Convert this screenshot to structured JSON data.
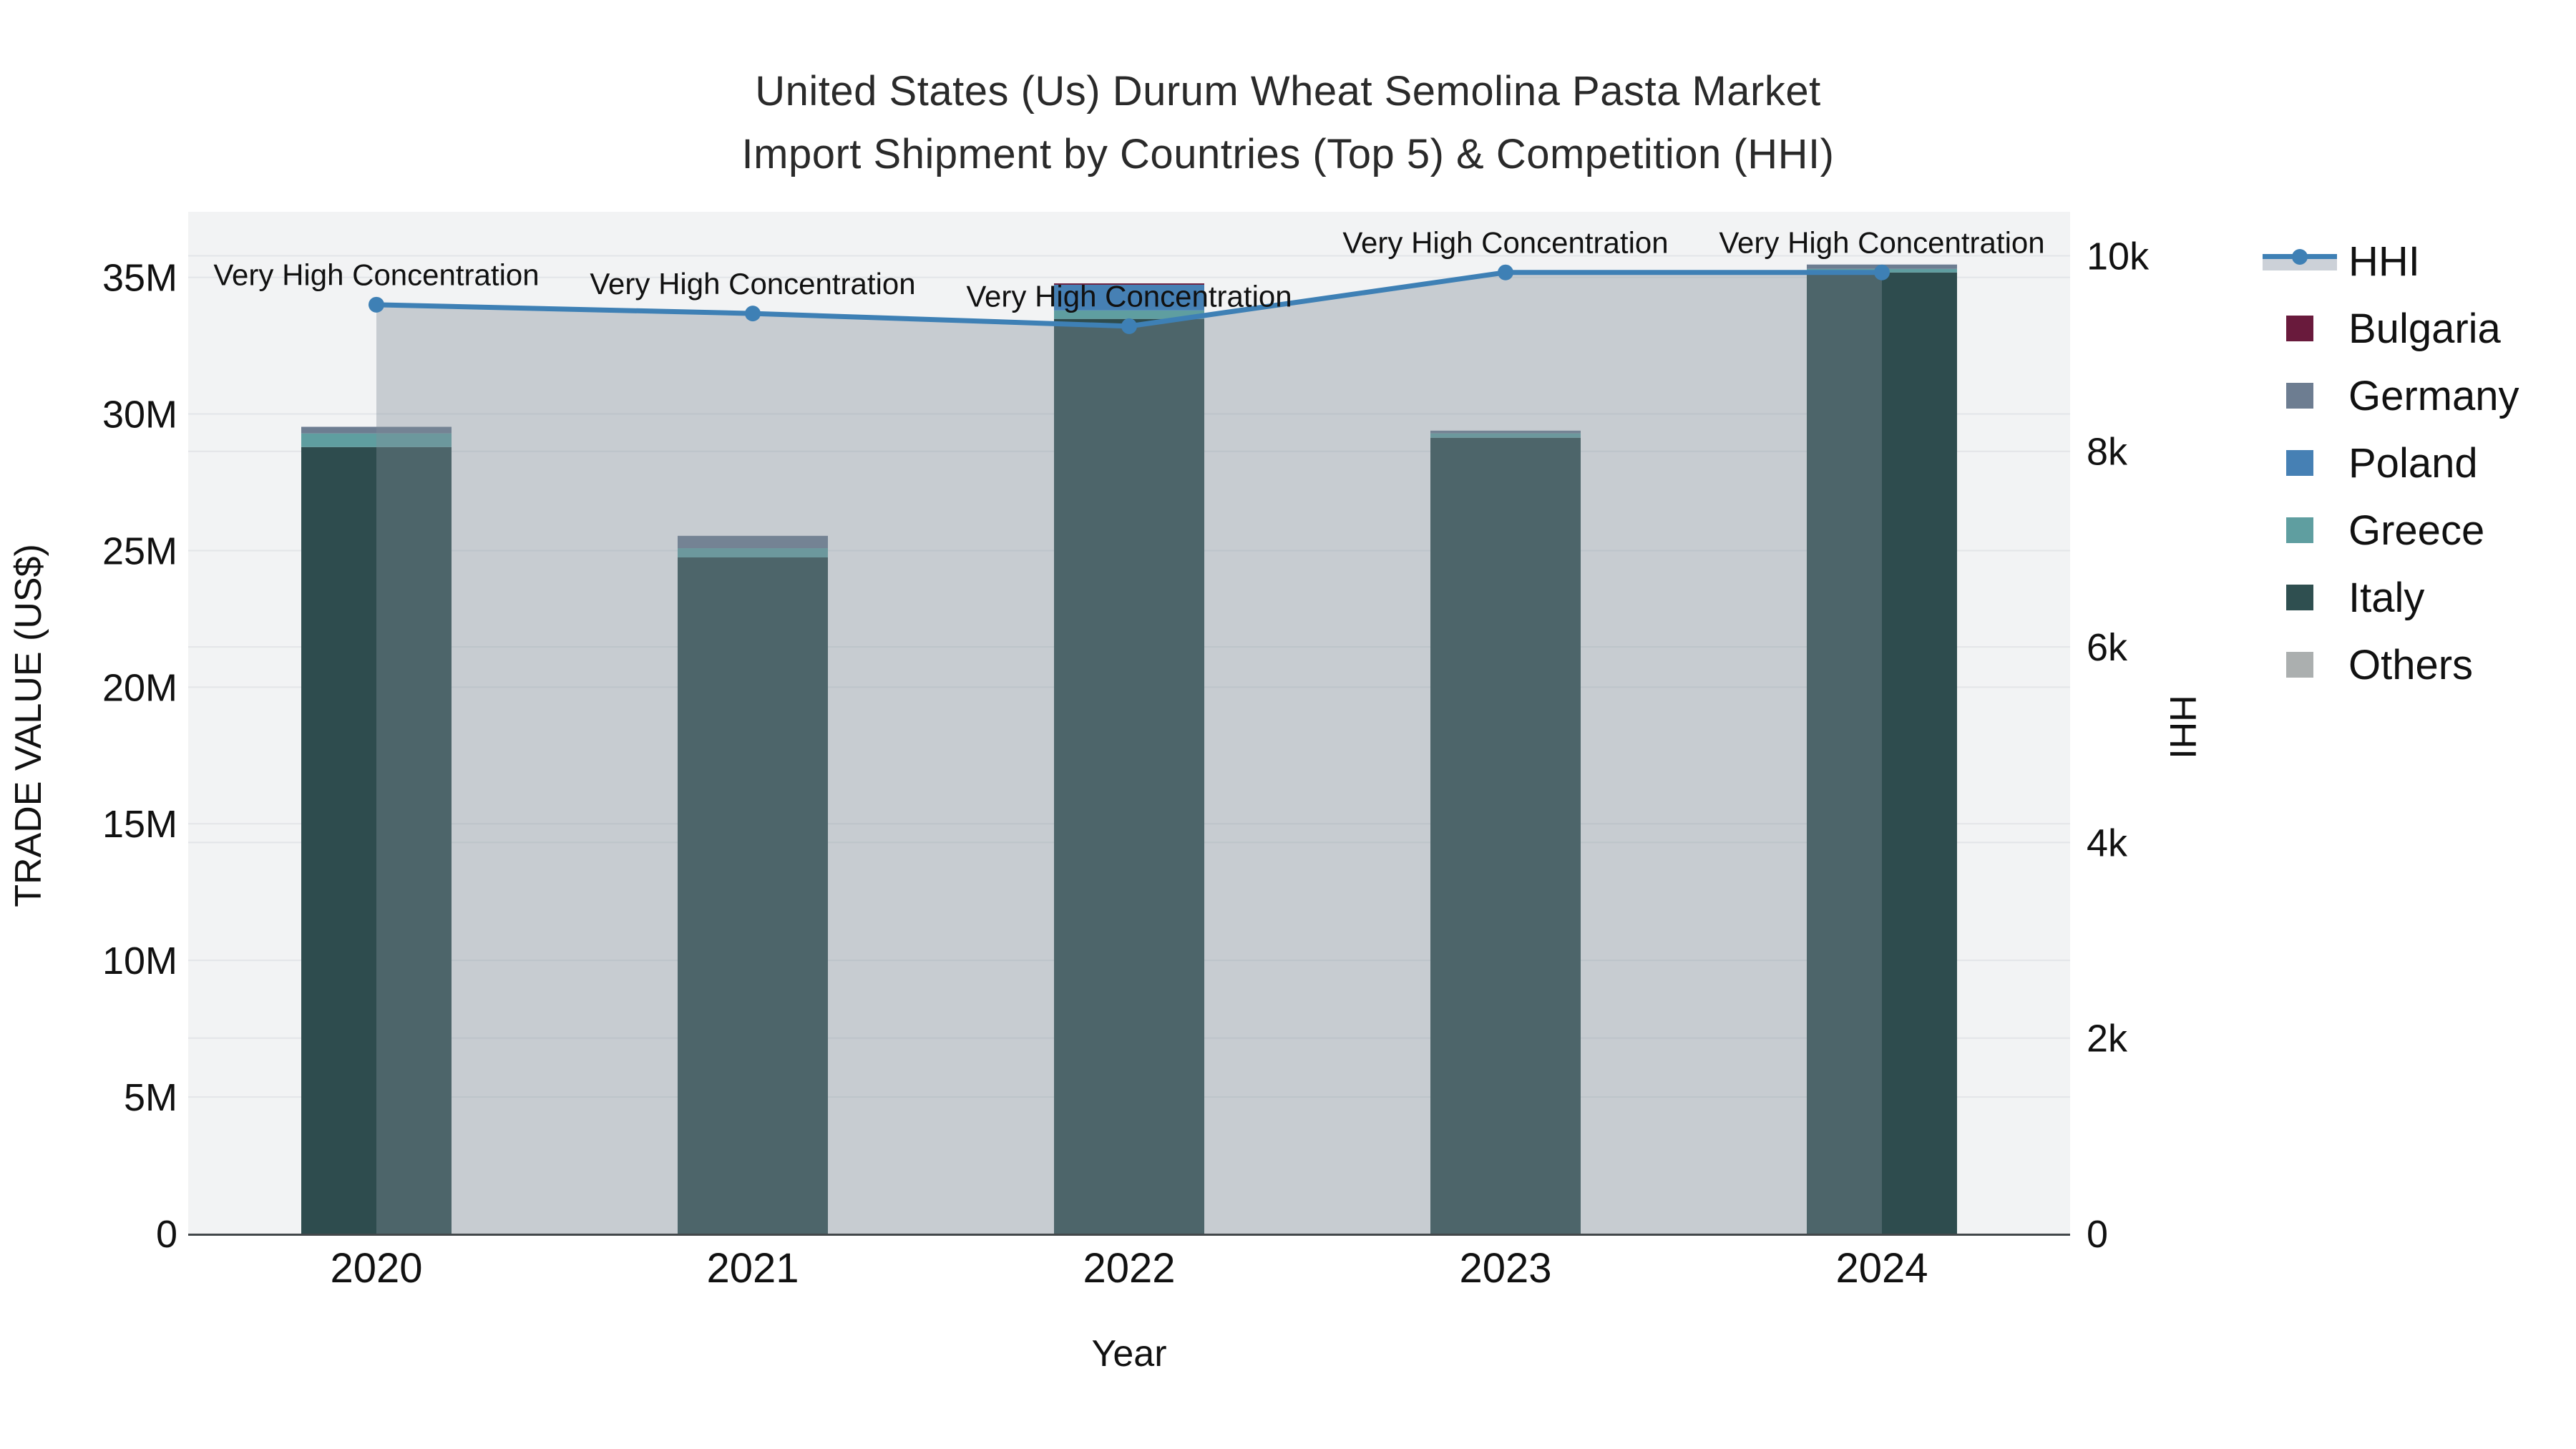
{
  "title": {
    "line1": "United States (Us) Durum Wheat Semolina Pasta Market",
    "line2": "Import Shipment by Countries (Top 5) & Competition (HHI)"
  },
  "axes": {
    "x_title": "Year",
    "y_left_title": "TRADE VALUE (US$)",
    "y_right_title": "HHI"
  },
  "chart_data": {
    "type": "bar",
    "subtype": "stacked-bars-with-hhi-line",
    "title": "United States (Us) Durum Wheat Semolina Pasta Market Import Shipment by Countries (Top 5) & Competition (HHI)",
    "xlabel": "Year",
    "ylabel_left": "TRADE VALUE (US$)",
    "ylabel_right": "HHI",
    "categories": [
      "2020",
      "2021",
      "2022",
      "2023",
      "2024"
    ],
    "value_unit": "millions US$",
    "series": [
      {
        "name": "Italy",
        "color": "#2e4c4e",
        "values": [
          28.79,
          24.75,
          33.48,
          29.13,
          35.18
        ]
      },
      {
        "name": "Greece",
        "color": "#5f9ea0",
        "values": [
          0.5,
          0.34,
          0.31,
          0.16,
          0.13
        ]
      },
      {
        "name": "Poland",
        "color": "#4680b4",
        "values": [
          0,
          0,
          0.94,
          0,
          0
        ]
      },
      {
        "name": "Germany",
        "color": "#6d7d91",
        "values": [
          0.24,
          0.45,
          0,
          0.1,
          0.16
        ]
      },
      {
        "name": "Bulgaria",
        "color": "#691a3c",
        "values": [
          0,
          0,
          0.05,
          0,
          0
        ]
      },
      {
        "name": "Others",
        "color": "#abafaf",
        "values": [
          0,
          0,
          0,
          0,
          0
        ]
      }
    ],
    "totals": [
      29.53,
      25.54,
      34.78,
      29.39,
      35.47
    ],
    "line": {
      "name": "HHI",
      "color": "#3e80b5",
      "fill": "rgba(130,141,152,0.38)",
      "values": [
        9500,
        9410,
        9280,
        9830,
        9830
      ]
    },
    "annotations": [
      "Very High Concentration",
      "Very High Concentration",
      "Very High Concentration",
      "Very High Concentration",
      "Very High Concentration"
    ],
    "left_axis": {
      "max": 37.4,
      "ticks": [
        {
          "v": 0,
          "label": "0"
        },
        {
          "v": 5,
          "label": "5M"
        },
        {
          "v": 10,
          "label": "10M"
        },
        {
          "v": 15,
          "label": "15M"
        },
        {
          "v": 20,
          "label": "20M"
        },
        {
          "v": 25,
          "label": "25M"
        },
        {
          "v": 30,
          "label": "30M"
        },
        {
          "v": 35,
          "label": "35M"
        }
      ]
    },
    "right_axis": {
      "max": 10450,
      "ticks": [
        {
          "v": 0,
          "label": "0"
        },
        {
          "v": 2000,
          "label": "2k"
        },
        {
          "v": 4000,
          "label": "4k"
        },
        {
          "v": 6000,
          "label": "6k"
        },
        {
          "v": 8000,
          "label": "8k"
        },
        {
          "v": 10000,
          "label": "10k"
        }
      ]
    },
    "grid": true,
    "legend_position": "right",
    "plot_bg": "#f2f3f4",
    "grid_color": "#e3e5e8",
    "axisline_color": "#42474a"
  },
  "legend": {
    "items": [
      {
        "label": "HHI",
        "type": "line",
        "color": "#3e80b5"
      },
      {
        "label": "Bulgaria",
        "type": "swatch",
        "color": "#691a3c"
      },
      {
        "label": "Germany",
        "type": "swatch",
        "color": "#6d7d91"
      },
      {
        "label": "Poland",
        "type": "swatch",
        "color": "#4680b4"
      },
      {
        "label": "Greece",
        "type": "swatch",
        "color": "#5f9ea0"
      },
      {
        "label": "Italy",
        "type": "swatch",
        "color": "#2f4f50"
      },
      {
        "label": "Others",
        "type": "swatch",
        "color": "#abafaf"
      }
    ]
  }
}
